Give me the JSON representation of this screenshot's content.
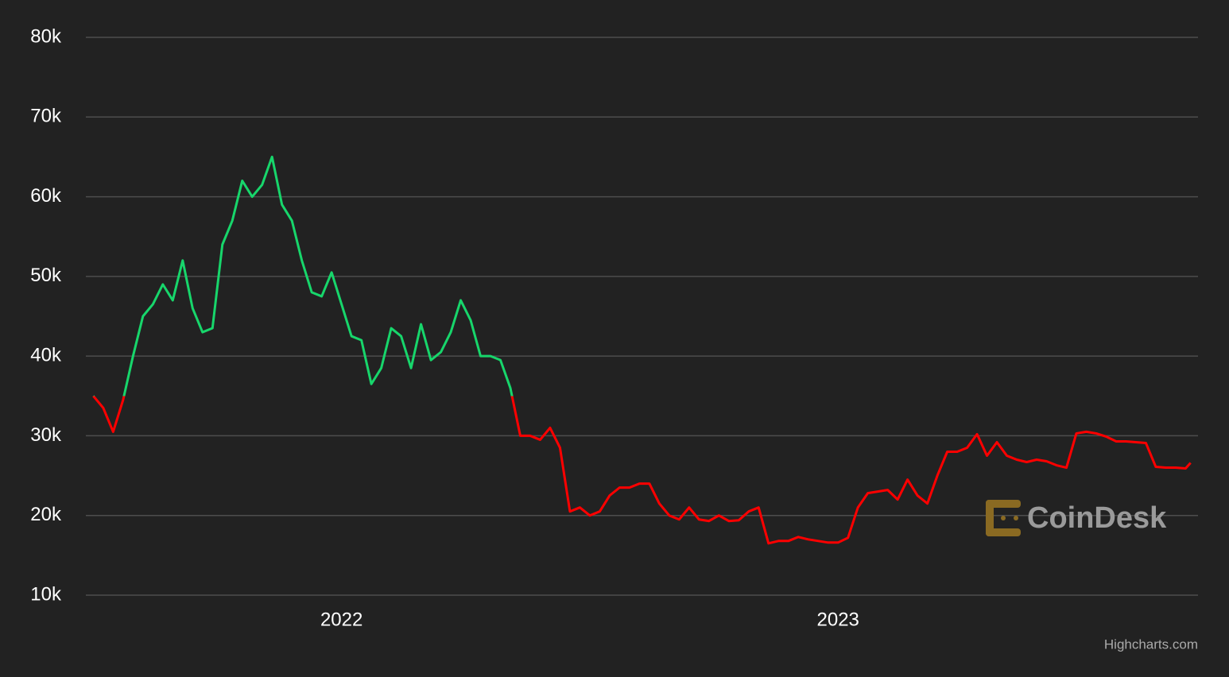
{
  "chart_data": {
    "type": "line",
    "x": [
      2021.5,
      2021.52,
      2021.54,
      2021.56,
      2021.58,
      2021.6,
      2021.62,
      2021.64,
      2021.66,
      2021.68,
      2021.7,
      2021.72,
      2021.74,
      2021.76,
      2021.78,
      2021.8,
      2021.82,
      2021.84,
      2021.86,
      2021.88,
      2021.9,
      2021.92,
      2021.94,
      2021.96,
      2021.98,
      2022.0,
      2022.02,
      2022.04,
      2022.06,
      2022.08,
      2022.1,
      2022.12,
      2022.14,
      2022.16,
      2022.18,
      2022.2,
      2022.22,
      2022.24,
      2022.26,
      2022.28,
      2022.3,
      2022.32,
      2022.34,
      2022.36,
      2022.38,
      2022.4,
      2022.42,
      2022.44,
      2022.46,
      2022.48,
      2022.5,
      2022.52,
      2022.54,
      2022.56,
      2022.58,
      2022.6,
      2022.62,
      2022.64,
      2022.66,
      2022.68,
      2022.7,
      2022.72,
      2022.74,
      2022.76,
      2022.78,
      2022.8,
      2022.82,
      2022.84,
      2022.86,
      2022.88,
      2022.9,
      2022.92,
      2022.94,
      2022.96,
      2022.98,
      2023.0,
      2023.02,
      2023.04,
      2023.06,
      2023.08,
      2023.1,
      2023.12,
      2023.14,
      2023.16,
      2023.18,
      2023.2,
      2023.22,
      2023.24,
      2023.26,
      2023.28,
      2023.3,
      2023.32,
      2023.34,
      2023.36,
      2023.38,
      2023.4,
      2023.42,
      2023.44,
      2023.46,
      2023.48,
      2023.5,
      2023.52,
      2023.54,
      2023.56,
      2023.58,
      2023.6,
      2023.62,
      2023.64,
      2023.66,
      2023.68,
      2023.7,
      2023.71
    ],
    "values": [
      35000,
      33500,
      30500,
      34500,
      40000,
      45000,
      46500,
      49000,
      47000,
      52000,
      46000,
      43000,
      43500,
      54000,
      57000,
      62000,
      60000,
      61500,
      65000,
      59000,
      57000,
      52000,
      48000,
      47500,
      50500,
      46500,
      42500,
      42000,
      36500,
      38500,
      43500,
      42500,
      38500,
      44000,
      39500,
      40500,
      43000,
      47000,
      44500,
      40000,
      40000,
      39500,
      36000,
      30000,
      30000,
      29500,
      31000,
      28500,
      20500,
      21000,
      20000,
      20500,
      22500,
      23500,
      23500,
      24000,
      24000,
      21500,
      20000,
      19500,
      21000,
      19500,
      19300,
      20000,
      19300,
      19400,
      20500,
      21000,
      16500,
      16800,
      16800,
      17300,
      17000,
      16800,
      16600,
      16600,
      17200,
      21000,
      22800,
      23000,
      23200,
      22000,
      24500,
      22500,
      21500,
      25000,
      28000,
      28000,
      28500,
      30200,
      27500,
      29200,
      27500,
      27000,
      26700,
      27000,
      26800,
      26300,
      26000,
      30300,
      30500,
      30300,
      29900,
      29300,
      29300,
      29200,
      29100,
      26100,
      26000,
      26000,
      25900,
      26600
    ],
    "color": "#17d66b",
    "negative_color": "#ff0000",
    "threshold": 35000,
    "xlim": [
      2021.485,
      2023.725
    ],
    "xticks": [
      2022,
      2023
    ],
    "ylim": [
      10000,
      80000
    ],
    "yticks": [
      {
        "value": 10000,
        "label": "10k"
      },
      {
        "value": 20000,
        "label": "20k"
      },
      {
        "value": 30000,
        "label": "30k"
      },
      {
        "value": 40000,
        "label": "40k"
      },
      {
        "value": 50000,
        "label": "50k"
      },
      {
        "value": 60000,
        "label": "60k"
      },
      {
        "value": 70000,
        "label": "70k"
      },
      {
        "value": 80000,
        "label": "80k"
      }
    ],
    "grid": true,
    "watermark": "CoinDesk",
    "credits": "Highcharts.com"
  }
}
